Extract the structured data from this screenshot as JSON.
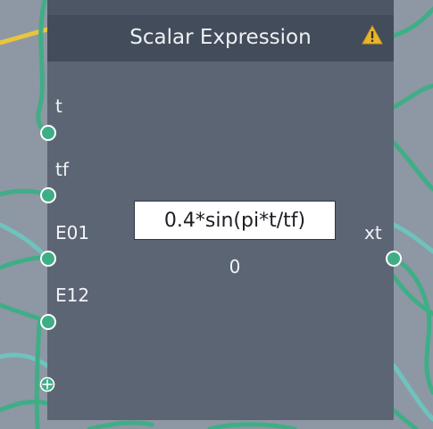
{
  "node": {
    "title": "Scalar Expression",
    "warning_icon": "warning-triangle-icon",
    "expression": "0.4*sin(pi*t/tf)",
    "result": "0",
    "inputs": [
      {
        "label": "t"
      },
      {
        "label": "tf"
      },
      {
        "label": "E01"
      },
      {
        "label": "E12"
      }
    ],
    "add_input_icon": "plus-circle-icon",
    "output": {
      "label": "xt"
    }
  },
  "colors": {
    "canvas": "#8e97a4",
    "node_body": "#5c6574",
    "node_header": "#434c5a",
    "port": "#3fae86",
    "wire_green": "#3fae86",
    "wire_teal": "#6ec3bd",
    "wire_yellow": "#e8c53c",
    "warning": "#e8b62c"
  }
}
